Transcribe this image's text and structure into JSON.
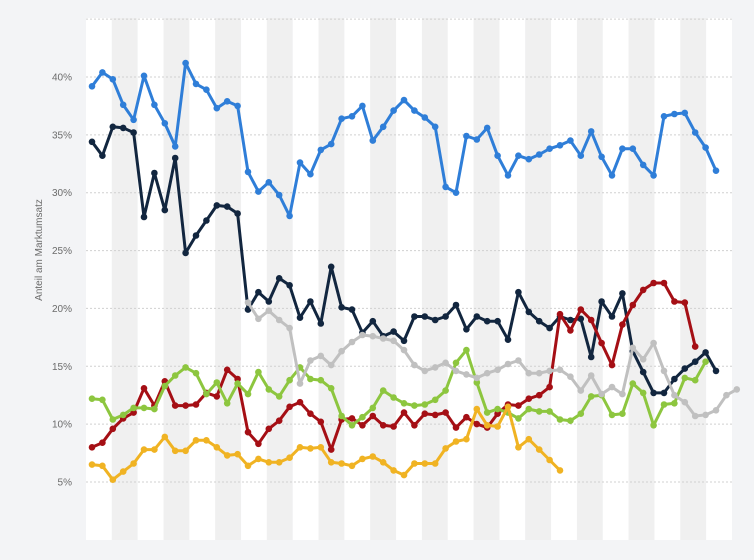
{
  "chart_data": {
    "type": "line",
    "title": "",
    "xlabel": "",
    "ylabel": "Anteil am Marktumsatz",
    "yticks": [
      "5%",
      "10%",
      "15%",
      "20%",
      "25%",
      "30%",
      "35%",
      "40%"
    ],
    "ytick_values": [
      5,
      10,
      15,
      20,
      25,
      30,
      35,
      40
    ],
    "ylim": [
      5,
      44
    ],
    "x_points": 71,
    "grid": true,
    "legend": "none",
    "colors": {
      "background": "#f3f4f6",
      "plot_band_light": "#ffffff",
      "plot_band_dark": "#f0f0f0",
      "grid": "#d0d0d0"
    },
    "series": [
      {
        "color": "#2f7ed8",
        "start": 0,
        "values": [
          39.2,
          40.4,
          39.8,
          37.6,
          36.3,
          40.1,
          37.6,
          36.0,
          34.0,
          41.2,
          39.4,
          38.9,
          37.3,
          37.9,
          37.5,
          31.8,
          30.1,
          30.9,
          29.8,
          28.0,
          32.6,
          31.6,
          33.7,
          34.2,
          36.4,
          36.6,
          37.5,
          34.5,
          35.7,
          37.1,
          38.0,
          37.1,
          36.5,
          35.7,
          30.5,
          30.0,
          34.9,
          34.6,
          35.6,
          33.2,
          31.5,
          33.2,
          32.9,
          33.3,
          33.8,
          34.1,
          34.5,
          33.2,
          35.3,
          33.1,
          31.5,
          33.8,
          33.8,
          32.4,
          31.5,
          36.6,
          36.8,
          36.9,
          35.2,
          33.9,
          31.9
        ]
      },
      {
        "color": "#12263f",
        "start": 0,
        "values": [
          34.4,
          33.2,
          35.7,
          35.6,
          35.2,
          27.9,
          31.7,
          28.5,
          33.0,
          24.8,
          26.3,
          27.6,
          28.9,
          28.8,
          28.2,
          19.9,
          21.4,
          20.6,
          22.6,
          22.0,
          19.2,
          20.6,
          18.7,
          23.6,
          20.1,
          19.9,
          17.9,
          18.9,
          17.6,
          18.0,
          17.2,
          19.3,
          19.3,
          19.0,
          19.3,
          20.3,
          18.2,
          19.3,
          18.9,
          18.9,
          17.3,
          21.4,
          19.7,
          18.9,
          18.3,
          19.3,
          19.0,
          19.1,
          15.8,
          20.6,
          19.3,
          21.3,
          16.3,
          14.5,
          12.7,
          12.7,
          13.9,
          14.8,
          15.4,
          16.2,
          14.6
        ]
      },
      {
        "color": "#a50f15",
        "start": 0,
        "values": [
          8.0,
          8.4,
          9.6,
          10.5,
          11.0,
          13.1,
          11.6,
          13.7,
          11.6,
          11.6,
          11.7,
          12.7,
          12.4,
          14.7,
          13.9,
          9.3,
          8.3,
          9.6,
          10.3,
          11.5,
          11.9,
          10.9,
          10.2,
          7.8,
          10.4,
          10.5,
          9.9,
          10.7,
          9.9,
          9.8,
          11.0,
          9.9,
          10.9,
          10.8,
          11.0,
          9.7,
          10.6,
          10.0,
          9.7,
          10.9,
          11.7,
          11.6,
          12.2,
          12.5,
          13.2,
          19.5,
          18.1,
          19.9,
          19.0,
          17.0,
          15.1,
          18.6,
          20.3,
          21.6,
          22.2,
          22.2,
          20.6,
          20.5,
          16.7
        ]
      },
      {
        "color": "#8dc63f",
        "start": 0,
        "values": [
          12.2,
          12.1,
          10.4,
          10.8,
          11.4,
          11.4,
          11.3,
          13.3,
          14.2,
          14.9,
          14.4,
          12.6,
          13.6,
          11.8,
          13.5,
          12.6,
          14.5,
          13.0,
          12.4,
          13.8,
          14.9,
          13.9,
          13.8,
          13.1,
          10.7,
          9.9,
          10.6,
          11.4,
          12.9,
          12.3,
          11.8,
          11.6,
          11.7,
          12.1,
          12.9,
          15.3,
          16.4,
          13.6,
          11.0,
          11.3,
          11.0,
          10.5,
          11.3,
          11.1,
          11.1,
          10.4,
          10.3,
          10.9,
          12.4,
          12.5,
          10.8,
          10.9,
          13.5,
          12.7,
          9.9,
          11.7,
          11.8,
          14.0,
          13.8,
          15.4
        ]
      },
      {
        "color": "#c0c0c0",
        "start": 15,
        "values": [
          20.5,
          19.1,
          19.8,
          19.0,
          18.3,
          13.5,
          15.5,
          15.9,
          15.1,
          16.3,
          17.1,
          17.7,
          17.6,
          17.4,
          17.2,
          16.4,
          15.1,
          14.6,
          14.9,
          15.3,
          14.6,
          14.3,
          14.0,
          14.4,
          14.7,
          15.2,
          15.5,
          14.4,
          14.4,
          14.6,
          14.7,
          14.1,
          12.9,
          14.2,
          12.6,
          13.2,
          12.6,
          16.6,
          15.6,
          17.0,
          14.6,
          12.5,
          11.9,
          10.7,
          10.8,
          11.2,
          12.5,
          13.0
        ]
      },
      {
        "color": "#f0b323",
        "start": 0,
        "values": [
          6.5,
          6.4,
          5.2,
          5.9,
          6.6,
          7.8,
          7.8,
          8.9,
          7.7,
          7.7,
          8.6,
          8.6,
          8.0,
          7.3,
          7.4,
          6.4,
          7.0,
          6.7,
          6.7,
          7.1,
          8.0,
          7.9,
          8.0,
          6.7,
          6.6,
          6.4,
          7.0,
          7.2,
          6.7,
          6.0,
          5.6,
          6.6,
          6.6,
          6.6,
          7.9,
          8.5,
          8.7,
          11.3,
          9.9,
          9.8,
          11.5,
          8.0,
          8.7,
          7.8,
          6.9,
          6.0
        ]
      }
    ]
  }
}
